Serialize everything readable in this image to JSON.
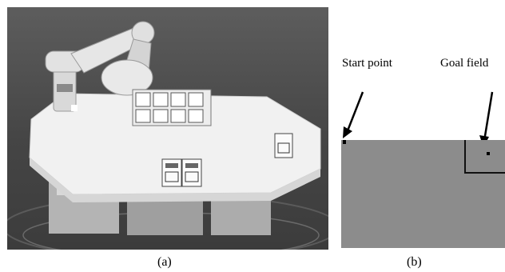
{
  "figure": {
    "panel_a": {
      "caption": "(a)"
    },
    "panel_b": {
      "caption": "(b)",
      "start_label": "Start point",
      "goal_label": "Goal field"
    }
  },
  "colors": {
    "field": "#8c8c8c",
    "photo_background": "#4a4a4a",
    "table": "#f1f1f1",
    "markers": "#000000"
  }
}
